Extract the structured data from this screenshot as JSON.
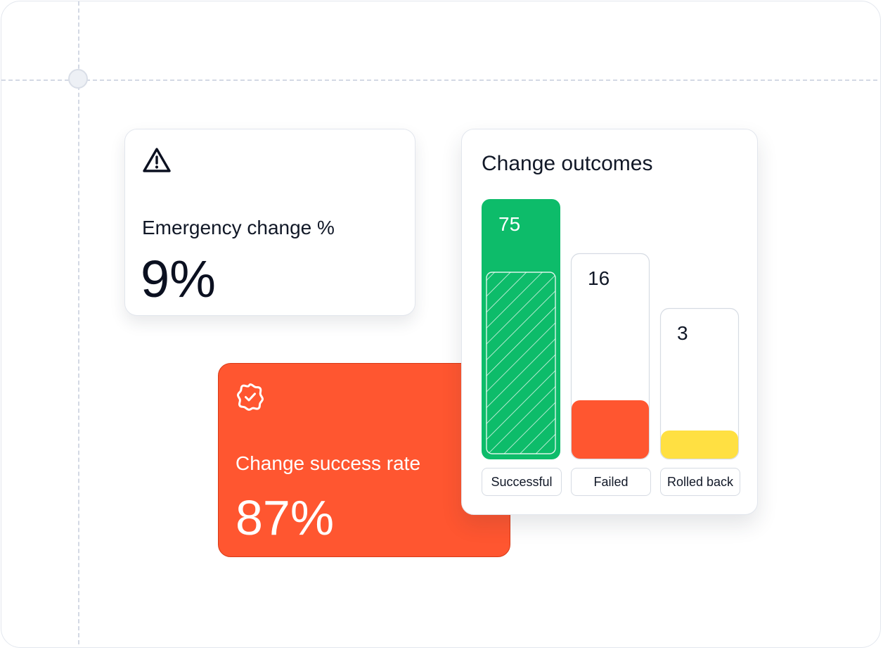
{
  "emergency_card": {
    "icon": "warning-triangle-icon",
    "label": "Emergency change %",
    "value": "9%"
  },
  "success_card": {
    "icon": "verified-badge-icon",
    "label": "Change success rate",
    "value": "87%"
  },
  "outcomes_card": {
    "title": "Change outcomes"
  },
  "colors": {
    "successful": "#0dbc6a",
    "failed": "#ff5630",
    "rolled_back": "#ffe042",
    "accent": "#ff5630"
  },
  "chart_data": {
    "type": "bar",
    "title": "Change outcomes",
    "categories": [
      "Successful",
      "Failed",
      "Rolled back"
    ],
    "values": [
      75,
      16,
      3
    ],
    "value_labels": [
      "75",
      "16",
      "3"
    ]
  }
}
